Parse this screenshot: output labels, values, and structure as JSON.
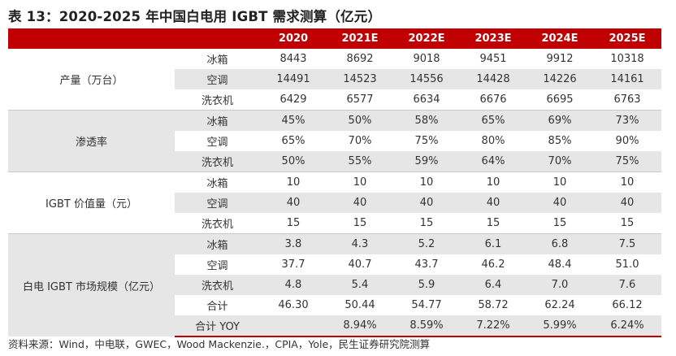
{
  "title": "表 13：2020-2025 年中国白电用 IGBT 需求测算（亿元）",
  "header": [
    "",
    "",
    "2020",
    "2021E",
    "2022E",
    "2023E",
    "2024E",
    "2025E"
  ],
  "groups": [
    {
      "label": "产量（万台）",
      "rows": [
        {
          "label": "冰箱",
          "values": [
            "8443",
            "8692",
            "9018",
            "9451",
            "9912",
            "10318"
          ]
        },
        {
          "label": "空调",
          "values": [
            "14491",
            "14523",
            "14556",
            "14428",
            "14226",
            "14161"
          ]
        },
        {
          "label": "洗衣机",
          "values": [
            "6429",
            "6577",
            "6634",
            "6676",
            "6695",
            "6763"
          ]
        }
      ]
    },
    {
      "label": "渗透率",
      "rows": [
        {
          "label": "冰箱",
          "values": [
            "45%",
            "50%",
            "58%",
            "65%",
            "69%",
            "73%"
          ]
        },
        {
          "label": "空调",
          "values": [
            "65%",
            "70%",
            "75%",
            "80%",
            "85%",
            "90%"
          ]
        },
        {
          "label": "洗衣机",
          "values": [
            "50%",
            "55%",
            "59%",
            "64%",
            "70%",
            "75%"
          ]
        }
      ]
    },
    {
      "label": "IGBT 价值量（元）",
      "rows": [
        {
          "label": "冰箱",
          "values": [
            "10",
            "10",
            "10",
            "10",
            "10",
            "10"
          ]
        },
        {
          "label": "空调",
          "values": [
            "40",
            "40",
            "40",
            "40",
            "40",
            "40"
          ]
        },
        {
          "label": "洗衣机",
          "values": [
            "15",
            "15",
            "15",
            "15",
            "15",
            "15"
          ]
        }
      ]
    },
    {
      "label": "白电 IGBT 市场规模（亿元）",
      "rows": [
        {
          "label": "冰箱",
          "values": [
            "3.8",
            "4.3",
            "5.2",
            "6.1",
            "6.8",
            "7.5"
          ]
        },
        {
          "label": "空调",
          "values": [
            "37.7",
            "40.7",
            "43.7",
            "46.2",
            "48.4",
            "51.0"
          ]
        },
        {
          "label": "洗衣机",
          "values": [
            "4.8",
            "5.4",
            "5.9",
            "6.4",
            "7.0",
            "7.6"
          ]
        },
        {
          "label": "合计",
          "values": [
            "46.30",
            "50.44",
            "54.77",
            "58.72",
            "62.24",
            "66.12"
          ]
        },
        {
          "label": "合计 YOY",
          "values": [
            "",
            "8.94%",
            "8.59%",
            "7.22%",
            "5.99%",
            "6.24%"
          ]
        }
      ]
    }
  ],
  "source": "资料来源：Wind，中电联，GWEC，Wood Mackenzie.，CPIA，Yole，民生证券研究院测算",
  "colors": {
    "header_bg": "#c00000",
    "header_text": "#ffffff",
    "shade": "#e6e6e6"
  }
}
